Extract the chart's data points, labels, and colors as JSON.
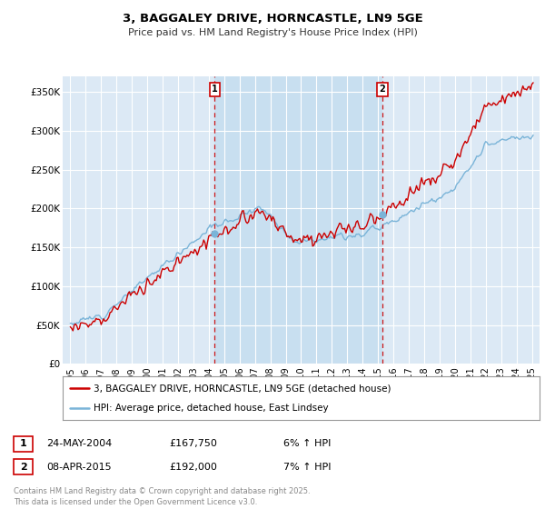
{
  "title": "3, BAGGALEY DRIVE, HORNCASTLE, LN9 5GE",
  "subtitle": "Price paid vs. HM Land Registry's House Price Index (HPI)",
  "background_color": "#ffffff",
  "plot_bg_color": "#dce9f5",
  "highlight_bg_color": "#c8dff0",
  "grid_color": "#ffffff",
  "hpi_line_color": "#7ab4d8",
  "price_line_color": "#cc0000",
  "vline_color": "#cc0000",
  "ylabel_ticks": [
    "£0",
    "£50K",
    "£100K",
    "£150K",
    "£200K",
    "£250K",
    "£300K",
    "£350K"
  ],
  "ytick_values": [
    0,
    50000,
    100000,
    150000,
    200000,
    250000,
    300000,
    350000
  ],
  "ylim": [
    0,
    370000
  ],
  "sale1": {
    "date_label": "24-MAY-2004",
    "price": 167750,
    "hpi_change": "6% ↑ HPI",
    "marker_num": 1,
    "x_year": 2004.38
  },
  "sale2": {
    "date_label": "08-APR-2015",
    "price": 192000,
    "hpi_change": "7% ↑ HPI",
    "marker_num": 2,
    "x_year": 2015.27
  },
  "legend_property": "3, BAGGALEY DRIVE, HORNCASTLE, LN9 5GE (detached house)",
  "legend_hpi": "HPI: Average price, detached house, East Lindsey",
  "footnote": "Contains HM Land Registry data © Crown copyright and database right 2025.\nThis data is licensed under the Open Government Licence v3.0.",
  "xlim": [
    1994.5,
    2025.5
  ],
  "xticks": [
    1995,
    1996,
    1997,
    1998,
    1999,
    2000,
    2001,
    2002,
    2003,
    2004,
    2005,
    2006,
    2007,
    2008,
    2009,
    2010,
    2011,
    2012,
    2013,
    2014,
    2015,
    2016,
    2017,
    2018,
    2019,
    2020,
    2021,
    2022,
    2023,
    2024,
    2025
  ]
}
